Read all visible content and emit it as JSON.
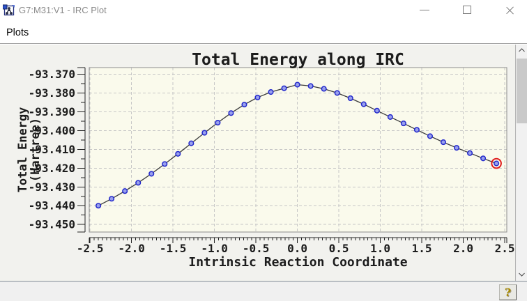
{
  "window": {
    "title": "G7:M31:V1 - IRC Plot"
  },
  "menu": {
    "items": [
      {
        "label": "Plots"
      }
    ]
  },
  "chart_data": {
    "type": "line",
    "title": "Total Energy along IRC",
    "xlabel": "Intrinsic Reaction Coordinate",
    "ylabel_lines": [
      "Total Energy",
      "(Hartree)"
    ],
    "x": [
      -2.4,
      -2.24,
      -2.08,
      -1.92,
      -1.76,
      -1.6,
      -1.44,
      -1.28,
      -1.12,
      -0.96,
      -0.8,
      -0.64,
      -0.48,
      -0.32,
      -0.16,
      0.0,
      0.16,
      0.32,
      0.48,
      0.64,
      0.8,
      0.96,
      1.12,
      1.28,
      1.44,
      1.6,
      1.76,
      1.92,
      2.08,
      2.24,
      2.4
    ],
    "y": [
      -93.44,
      -93.4363,
      -93.4322,
      -93.4278,
      -93.423,
      -93.4178,
      -93.4124,
      -93.4068,
      -93.4012,
      -93.3958,
      -93.3907,
      -93.3862,
      -93.3824,
      -93.3795,
      -93.3775,
      -93.3756,
      -93.3763,
      -93.3778,
      -93.38,
      -93.3828,
      -93.386,
      -93.3894,
      -93.3928,
      -93.3962,
      -93.3996,
      -93.403,
      -93.4062,
      -93.4092,
      -93.412,
      -93.4148,
      -93.4175
    ],
    "xlim": [
      -2.51,
      2.525
    ],
    "ylim": [
      -93.454,
      -93.3665
    ],
    "x_tick_values": [
      -2.5,
      -2.0,
      -1.5,
      -1.0,
      -0.5,
      0.0,
      0.5,
      1.0,
      1.5,
      2.0,
      2.5
    ],
    "x_tick_labels": [
      "-2.5",
      "-2.0",
      "-1.5",
      "-1.0",
      "-0.5",
      "0.0",
      "0.5",
      "1.0",
      "1.5",
      "2.0",
      "2.5"
    ],
    "y_tick_values": [
      -93.37,
      -93.38,
      -93.39,
      -93.4,
      -93.41,
      -93.42,
      -93.43,
      -93.44,
      -93.45
    ],
    "y_tick_labels": [
      "-93.370",
      "-93.380",
      "-93.390",
      "-93.400",
      "-93.410",
      "-93.420",
      "-93.430",
      "-93.440",
      "-93.450"
    ],
    "x_minor_step": 0.05,
    "y_minor_step": 0.005,
    "grid": true,
    "legend": "none",
    "highlighted_point_index": 30,
    "colors": {
      "plot_bg": "#fafaec",
      "grid": "#c6c6c6",
      "line": "#3a3a3a",
      "marker_fill": "#99a0ec",
      "marker_stroke": "#2228cc",
      "highlight_ring": "#e02020",
      "box_border": "#8c8c8c",
      "text": "#1c1c1c"
    }
  },
  "help": {
    "glyph": "?"
  }
}
